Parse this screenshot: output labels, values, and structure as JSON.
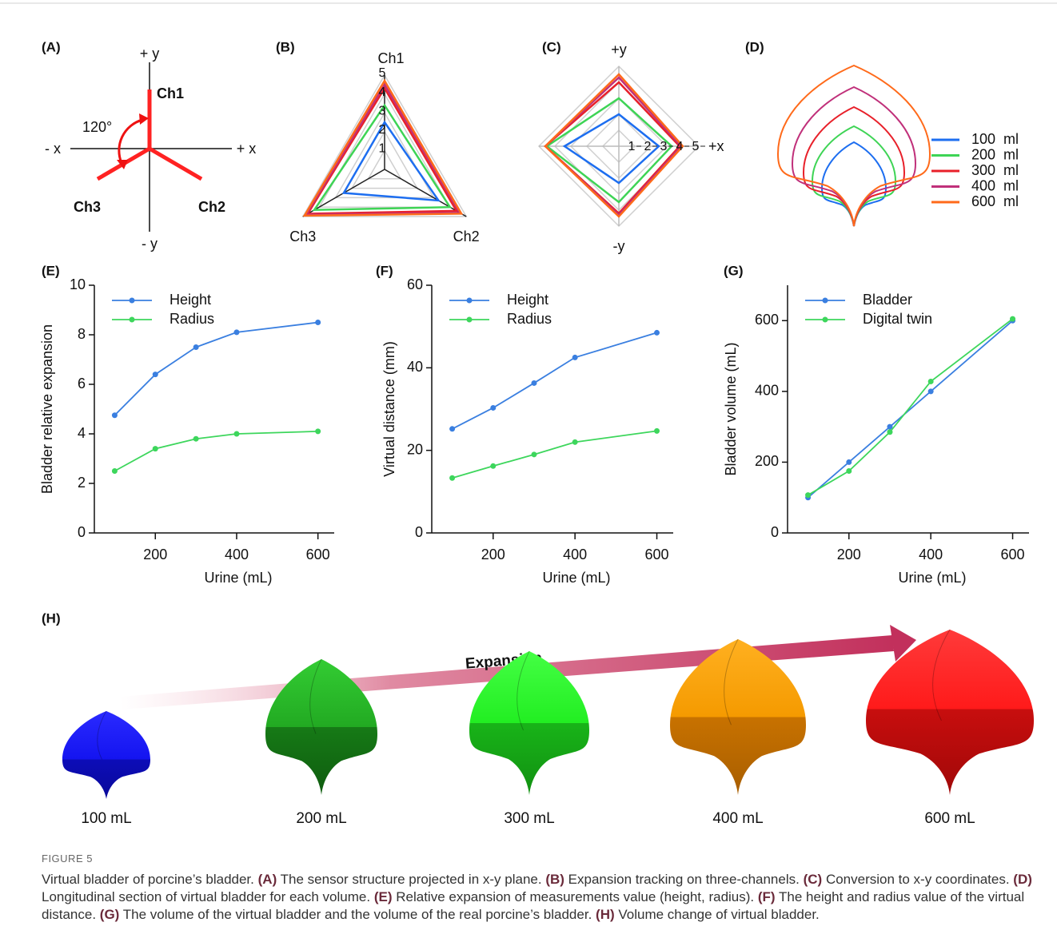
{
  "figure": {
    "panel_a": {
      "label": "(A)",
      "plus_y": "+ y",
      "minus_y": "- y",
      "minus_x": "- x",
      "plus_x": "+ x",
      "channels": [
        "Ch1",
        "Ch2",
        "Ch3"
      ],
      "angle": "120°"
    },
    "panel_d": {
      "label": "(D)",
      "series": [
        {
          "name": "100  ml",
          "color": "#1d6ef0"
        },
        {
          "name": "200  ml",
          "color": "#3ed455"
        },
        {
          "name": "300  ml",
          "color": "#e8202a"
        },
        {
          "name": "400  ml",
          "color": "#c0307a"
        },
        {
          "name": "600  ml",
          "color": "#ff6a1a"
        }
      ]
    },
    "panel_h": {
      "label": "(H)",
      "arrow_label": "Expansion",
      "bladders": [
        "100 mL",
        "200 mL",
        "300 mL",
        "400 mL",
        "600 mL"
      ]
    }
  },
  "chart_data": [
    {
      "type": "radar",
      "panel": "(B)",
      "categories": [
        "Ch1",
        "Ch2",
        "Ch3"
      ],
      "rlim": [
        0,
        5
      ],
      "rticks": [
        1,
        2,
        3,
        4,
        5
      ],
      "series": [
        {
          "color": "#1d6ef0",
          "values": [
            2.5,
            3.3,
            2.5
          ]
        },
        {
          "color": "#3ed455",
          "values": [
            3.4,
            4.0,
            4.3
          ]
        },
        {
          "color": "#e8202a",
          "values": [
            4.3,
            4.4,
            4.7
          ]
        },
        {
          "color": "#c0307a",
          "values": [
            4.5,
            4.6,
            4.8
          ]
        },
        {
          "color": "#ff6a1a",
          "values": [
            4.7,
            4.7,
            4.9
          ]
        }
      ]
    },
    {
      "type": "radar",
      "panel": "(C)",
      "categories": [
        "+y",
        "+x",
        "-y",
        null
      ],
      "rlim": [
        0,
        5
      ],
      "rticks": [
        1,
        2,
        3,
        4,
        5
      ],
      "series": [
        {
          "color": "#1d6ef0",
          "values": [
            2.0,
            2.5,
            2.3,
            3.4
          ]
        },
        {
          "color": "#3ed455",
          "values": [
            3.0,
            3.3,
            3.5,
            4.5
          ]
        },
        {
          "color": "#e8202a",
          "values": [
            4.0,
            3.8,
            4.2,
            4.6
          ]
        },
        {
          "color": "#c0307a",
          "values": [
            4.3,
            3.9,
            4.3,
            4.6
          ]
        },
        {
          "color": "#ff6a1a",
          "values": [
            4.5,
            4.0,
            4.4,
            4.6
          ]
        }
      ]
    },
    {
      "type": "line",
      "panel": "(E)",
      "xlabel": "Urine (mL)",
      "ylabel": "Bladder relative expansion",
      "x": [
        100,
        200,
        300,
        400,
        600
      ],
      "xlim": [
        50,
        640
      ],
      "xticks": [
        200,
        400,
        600
      ],
      "ylim": [
        0,
        10
      ],
      "yticks": [
        0,
        2,
        4,
        6,
        8,
        10
      ],
      "series": [
        {
          "name": "Height",
          "color": "#3a7fe0",
          "values": [
            4.75,
            6.4,
            7.5,
            8.1,
            8.5
          ]
        },
        {
          "name": "Radius",
          "color": "#3dd65c",
          "values": [
            2.5,
            3.4,
            3.8,
            4.0,
            4.1
          ]
        }
      ]
    },
    {
      "type": "line",
      "panel": "(F)",
      "xlabel": "Urine (mL)",
      "ylabel": "Virtual distance (mm)",
      "x": [
        100,
        200,
        300,
        400,
        600
      ],
      "xlim": [
        50,
        640
      ],
      "xticks": [
        200,
        400,
        600
      ],
      "ylim": [
        0,
        60
      ],
      "yticks": [
        0,
        20,
        40,
        60
      ],
      "series": [
        {
          "name": "Height",
          "color": "#3a7fe0",
          "values": [
            25.2,
            30.3,
            36.3,
            42.5,
            48.5
          ]
        },
        {
          "name": "Radius",
          "color": "#3dd65c",
          "values": [
            13.3,
            16.2,
            19.0,
            22.0,
            24.7
          ]
        }
      ]
    },
    {
      "type": "line",
      "panel": "(G)",
      "xlabel": "Urine (mL)",
      "ylabel": "Bladder volume (mL)",
      "x": [
        100,
        200,
        300,
        400,
        600
      ],
      "xlim": [
        50,
        640
      ],
      "xticks": [
        200,
        400,
        600
      ],
      "ylim": [
        0,
        700
      ],
      "yticks": [
        0,
        200,
        400,
        600
      ],
      "series": [
        {
          "name": "Bladder",
          "color": "#3a7fe0",
          "values": [
            100,
            200,
            300,
            400,
            600
          ]
        },
        {
          "name": "Digital twin",
          "color": "#3dd65c",
          "values": [
            107,
            175,
            285,
            428,
            605
          ]
        }
      ]
    }
  ],
  "caption": {
    "label": "FIGURE 5",
    "title": "Virtual bladder of porcine’s bladder.",
    "parts": [
      {
        "panel": "(A)",
        "text": "The sensor structure projected in x-y plane."
      },
      {
        "panel": "(B)",
        "text": "Expansion tracking on three-channels."
      },
      {
        "panel": "(C)",
        "text": "Conversion to x-y coordinates."
      },
      {
        "panel": "(D)",
        "text": "Longitudinal section of virtual bladder for each volume."
      },
      {
        "panel": "(E)",
        "text": "Relative expansion of measurements value (height, radius)."
      },
      {
        "panel": "(F)",
        "text": "The height and radius value of the virtual distance."
      },
      {
        "panel": "(G)",
        "text": "The volume of the virtual bladder and the volume of the real porcine’s bladder."
      },
      {
        "panel": "(H)",
        "text": "Volume change of virtual bladder."
      }
    ]
  }
}
